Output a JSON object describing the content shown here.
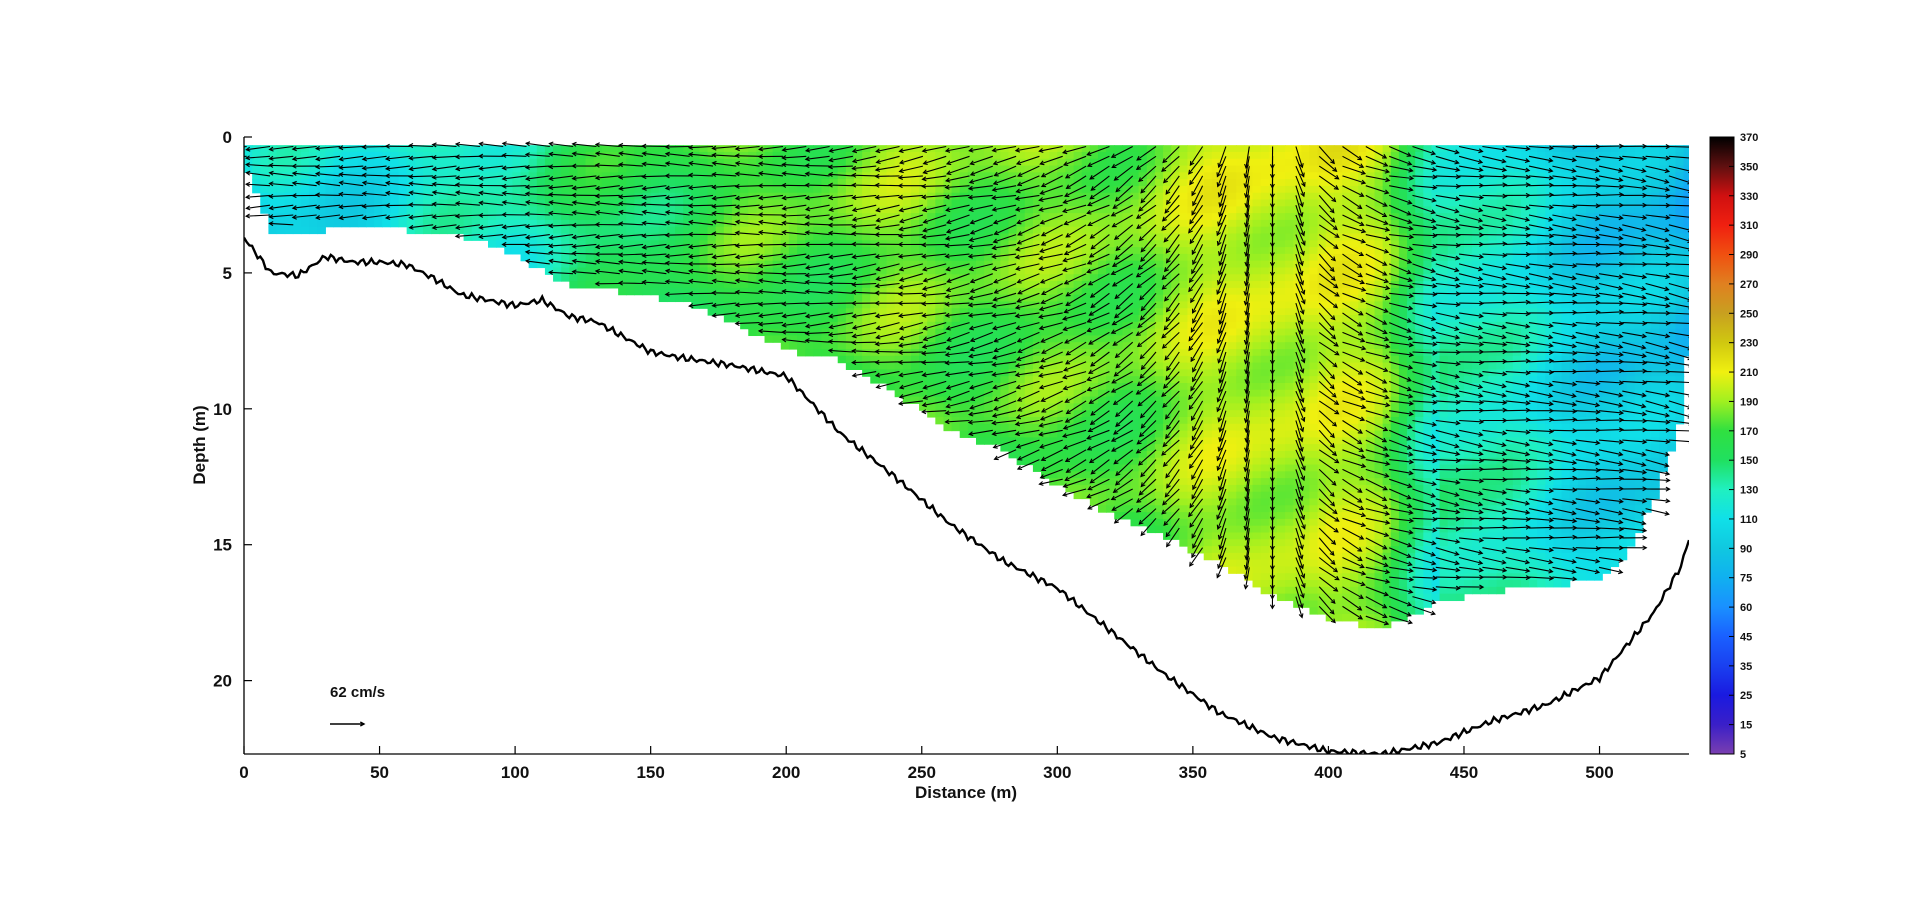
{
  "chart_data": {
    "type": "heatmap",
    "xlabel": "Distance (m)",
    "ylabel": "Depth (m)",
    "xlim": [
      0,
      533
    ],
    "ylim": [
      0,
      22.7
    ],
    "y_reversed": true,
    "x_ticks": [
      0,
      50,
      100,
      150,
      200,
      250,
      300,
      350,
      400,
      450,
      500
    ],
    "y_ticks": [
      0,
      5,
      10,
      15,
      20
    ],
    "grid": false,
    "colorbar": {
      "ticks": [
        5,
        15,
        25,
        35,
        45,
        60,
        75,
        90,
        110,
        130,
        150,
        170,
        190,
        210,
        230,
        250,
        270,
        290,
        310,
        330,
        350,
        370
      ],
      "colors": [
        "#7a3fb0",
        "#3a1fc8",
        "#1a1ae0",
        "#1a40f0",
        "#1a60ff",
        "#1a90ff",
        "#10b0f0",
        "#10c8e0",
        "#10e0e8",
        "#20f0c0",
        "#20e060",
        "#30e040",
        "#a0f020",
        "#f0f010",
        "#d0c810",
        "#c8a020",
        "#e08020",
        "#f05010",
        "#f02010",
        "#d01010",
        "#601010",
        "#000000"
      ]
    },
    "vector_scale_label": "62 cm/s",
    "surface_speed_profile": {
      "x": [
        0,
        50,
        100,
        150,
        200,
        250,
        300,
        350,
        380,
        400,
        420,
        440,
        460,
        480,
        500,
        520,
        533
      ],
      "speed": [
        110,
        120,
        140,
        165,
        180,
        185,
        180,
        195,
        210,
        205,
        190,
        140,
        115,
        105,
        95,
        80,
        70
      ]
    },
    "measured_bottom_depth": {
      "x": [
        0,
        10,
        20,
        30,
        40,
        50,
        60,
        70,
        80,
        100,
        110,
        120,
        130,
        150,
        160,
        180,
        200,
        220,
        240,
        260,
        280,
        300,
        320,
        340,
        360,
        380,
        400,
        420,
        440,
        460,
        480,
        500,
        520,
        530,
        533
      ],
      "depth": [
        3.7,
        5.0,
        5.1,
        4.4,
        4.6,
        4.6,
        4.7,
        5.2,
        5.8,
        6.2,
        6.0,
        6.6,
        6.8,
        7.9,
        8.1,
        8.4,
        8.8,
        10.9,
        12.5,
        14.2,
        15.6,
        16.6,
        18.2,
        19.8,
        21.2,
        22.1,
        22.6,
        22.7,
        22.3,
        21.5,
        20.9,
        19.9,
        17.5,
        15.8,
        14.8
      ]
    },
    "data_bottom_depth": {
      "x": [
        0,
        10,
        20,
        40,
        60,
        80,
        100,
        120,
        140,
        160,
        180,
        200,
        220,
        240,
        260,
        280,
        300,
        320,
        340,
        360,
        380,
        400,
        420,
        440,
        460,
        480,
        500,
        510,
        520,
        530,
        533
      ],
      "depth": [
        0.9,
        3.4,
        3.4,
        3.2,
        3.3,
        3.5,
        4.2,
        5.3,
        5.6,
        5.9,
        6.7,
        7.7,
        8.1,
        9.3,
        10.6,
        11.4,
        12.7,
        13.8,
        14.6,
        15.6,
        16.8,
        17.6,
        18.0,
        17.0,
        16.6,
        16.4,
        16.2,
        15.3,
        13.2,
        10.3,
        7.4
      ]
    },
    "flow_direction_profile": {
      "x": [
        0,
        100,
        200,
        300,
        350,
        380,
        400,
        430,
        460,
        500,
        533
      ],
      "u": [
        -1.0,
        -1.0,
        -1.0,
        -0.8,
        -0.4,
        0.0,
        0.6,
        0.9,
        1.0,
        1.0,
        0.9
      ],
      "v": [
        0.0,
        0.0,
        0.0,
        0.3,
        0.6,
        1.0,
        0.4,
        0.2,
        0.1,
        0.1,
        0.2
      ]
    }
  }
}
